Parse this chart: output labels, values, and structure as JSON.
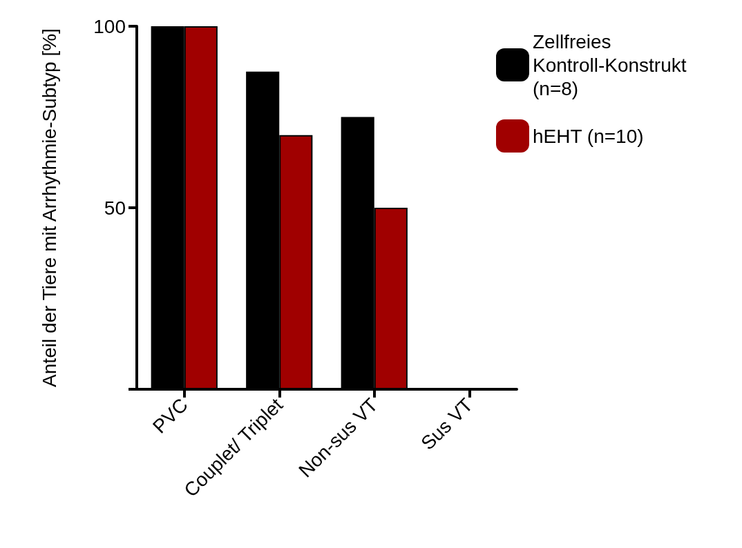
{
  "chart_data": {
    "type": "bar",
    "ylabel": "Anteil der Tiere mit Arrhythmie-Subtyp [%]",
    "categories": [
      "PVC",
      "Couplet/ Triplet",
      "Non-sus VT",
      "Sus VT"
    ],
    "series": [
      {
        "name": "Zellfreies Kontroll-Konstrukt (n=8)",
        "color": "#000000",
        "values": [
          100,
          87.5,
          75,
          0
        ]
      },
      {
        "name": "hEHT (n=10)",
        "color": "#a00000",
        "values": [
          100,
          70,
          50,
          0
        ]
      }
    ],
    "ylim": [
      0,
      100
    ],
    "yticks": [
      {
        "value": 0,
        "label": null
      },
      50,
      100
    ],
    "grid": false,
    "legend": "top right"
  }
}
